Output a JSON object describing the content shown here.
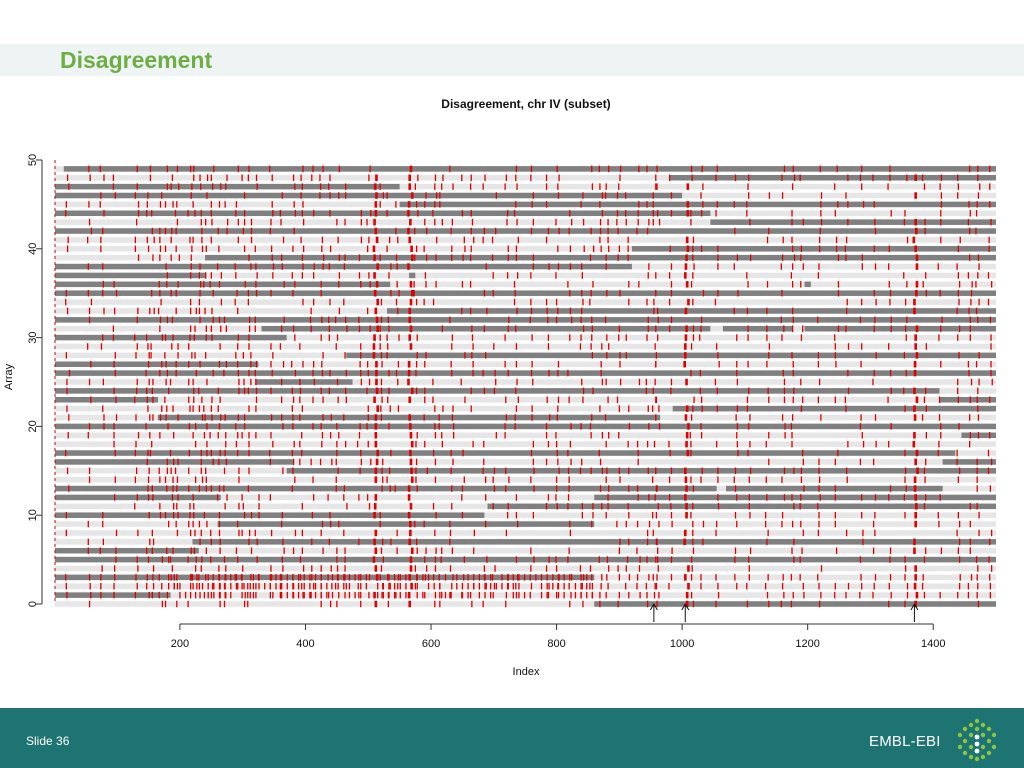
{
  "slide": {
    "title": "Disagreement",
    "number_label": "Slide 36",
    "brand_text": "EMBL-EBI",
    "colors": {
      "title": "#6fad45",
      "footer": "#1d7473",
      "title_band": "#eef4f4"
    },
    "logo_icon": "embl-ebi-hexagon-logo-icon"
  },
  "chart_data": {
    "type": "heatmap",
    "title": "Disagreement, chr IV (subset)",
    "xlabel": "Index",
    "ylabel": "Array",
    "xlim": [
      1,
      1500
    ],
    "ylim": [
      0,
      50
    ],
    "xticks": [
      200,
      400,
      600,
      800,
      1000,
      1200,
      1400
    ],
    "yticks": [
      0,
      10,
      20,
      30,
      40,
      50
    ],
    "arrow_markers": [
      955,
      1005,
      1370
    ],
    "colors": {
      "background_row": "#e6e6e6",
      "segment": "#808080",
      "disagreement": "#e00000"
    },
    "segments": [
      {
        "array": 0,
        "ranges": [
          [
            860,
            1500
          ]
        ]
      },
      {
        "array": 1,
        "ranges": [
          [
            1,
            185
          ]
        ]
      },
      {
        "array": 3,
        "ranges": [
          [
            1,
            860
          ]
        ]
      },
      {
        "array": 5,
        "ranges": [
          [
            1,
            1500
          ]
        ]
      },
      {
        "array": 6,
        "ranges": [
          [
            1,
            230
          ]
        ]
      },
      {
        "array": 7,
        "ranges": [
          [
            220,
            1500
          ]
        ]
      },
      {
        "array": 9,
        "ranges": [
          [
            260,
            860
          ]
        ]
      },
      {
        "array": 10,
        "ranges": [
          [
            1,
            685
          ]
        ]
      },
      {
        "array": 11,
        "ranges": [
          [
            690,
            1500
          ]
        ]
      },
      {
        "array": 12,
        "ranges": [
          [
            1,
            265
          ],
          [
            860,
            1500
          ]
        ]
      },
      {
        "array": 13,
        "ranges": [
          [
            1,
            1055
          ],
          [
            1070,
            1415
          ]
        ]
      },
      {
        "array": 15,
        "ranges": [
          [
            370,
            1500
          ]
        ]
      },
      {
        "array": 16,
        "ranges": [
          [
            1,
            380
          ],
          [
            1415,
            1500
          ]
        ]
      },
      {
        "array": 17,
        "ranges": [
          [
            1,
            1435
          ]
        ]
      },
      {
        "array": 19,
        "ranges": [
          [
            1445,
            1500
          ]
        ]
      },
      {
        "array": 20,
        "ranges": [
          [
            1,
            1500
          ]
        ]
      },
      {
        "array": 21,
        "ranges": [
          [
            165,
            965
          ]
        ]
      },
      {
        "array": 22,
        "ranges": [
          [
            985,
            1500
          ]
        ]
      },
      {
        "array": 23,
        "ranges": [
          [
            1,
            165
          ],
          [
            1410,
            1500
          ]
        ]
      },
      {
        "array": 24,
        "ranges": [
          [
            1,
            1410
          ]
        ]
      },
      {
        "array": 25,
        "ranges": [
          [
            320,
            475
          ]
        ]
      },
      {
        "array": 26,
        "ranges": [
          [
            1,
            1500
          ]
        ]
      },
      {
        "array": 27,
        "ranges": [
          [
            1,
            325
          ]
        ]
      },
      {
        "array": 28,
        "ranges": [
          [
            465,
            1500
          ]
        ]
      },
      {
        "array": 30,
        "ranges": [
          [
            1,
            370
          ]
        ]
      },
      {
        "array": 31,
        "ranges": [
          [
            330,
            1045
          ],
          [
            1065,
            1175
          ],
          [
            1195,
            1500
          ]
        ]
      },
      {
        "array": 32,
        "ranges": [
          [
            1,
            1500
          ]
        ]
      },
      {
        "array": 33,
        "ranges": [
          [
            530,
            1500
          ]
        ]
      },
      {
        "array": 35,
        "ranges": [
          [
            1,
            1500
          ]
        ]
      },
      {
        "array": 36,
        "ranges": [
          [
            1,
            535
          ],
          [
            1195,
            1205
          ]
        ]
      },
      {
        "array": 37,
        "ranges": [
          [
            1,
            240
          ],
          [
            565,
            575
          ]
        ]
      },
      {
        "array": 38,
        "ranges": [
          [
            1,
            920
          ]
        ]
      },
      {
        "array": 39,
        "ranges": [
          [
            240,
            1500
          ]
        ]
      },
      {
        "array": 40,
        "ranges": [
          [
            920,
            1500
          ]
        ]
      },
      {
        "array": 42,
        "ranges": [
          [
            1,
            1500
          ]
        ]
      },
      {
        "array": 43,
        "ranges": [
          [
            1045,
            1500
          ]
        ]
      },
      {
        "array": 44,
        "ranges": [
          [
            1,
            1045
          ]
        ]
      },
      {
        "array": 45,
        "ranges": [
          [
            550,
            1500
          ]
        ]
      },
      {
        "array": 46,
        "ranges": [
          [
            1,
            1000
          ]
        ]
      },
      {
        "array": 47,
        "ranges": [
          [
            1,
            550
          ]
        ]
      },
      {
        "array": 48,
        "ranges": [
          [
            980,
            1500
          ]
        ]
      },
      {
        "array": 49,
        "ranges": [
          [
            15,
            1500
          ]
        ]
      }
    ],
    "disagreement_columns": [
      20,
      55,
      75,
      95,
      130,
      148,
      155,
      168,
      178,
      187,
      195,
      215,
      222,
      232,
      240,
      250,
      262,
      272,
      290,
      300,
      310,
      322,
      345,
      362,
      380,
      393,
      410,
      425,
      438,
      450,
      462,
      485,
      500,
      510,
      520,
      532,
      545,
      565,
      575,
      590,
      605,
      615,
      632,
      650,
      665,
      685,
      700,
      720,
      735,
      760,
      785,
      800,
      820,
      840,
      855,
      870,
      880,
      898,
      912,
      930,
      945,
      955,
      960,
      980,
      1005,
      1015,
      1030,
      1055,
      1085,
      1105,
      1135,
      1160,
      1175,
      1190,
      1218,
      1245,
      1262,
      1285,
      1305,
      1330,
      1355,
      1370,
      1385,
      1410,
      1440,
      1458,
      1470,
      1490
    ],
    "strong_columns": [
      1,
      185,
      255,
      320,
      510,
      565,
      1005,
      1370
    ]
  }
}
